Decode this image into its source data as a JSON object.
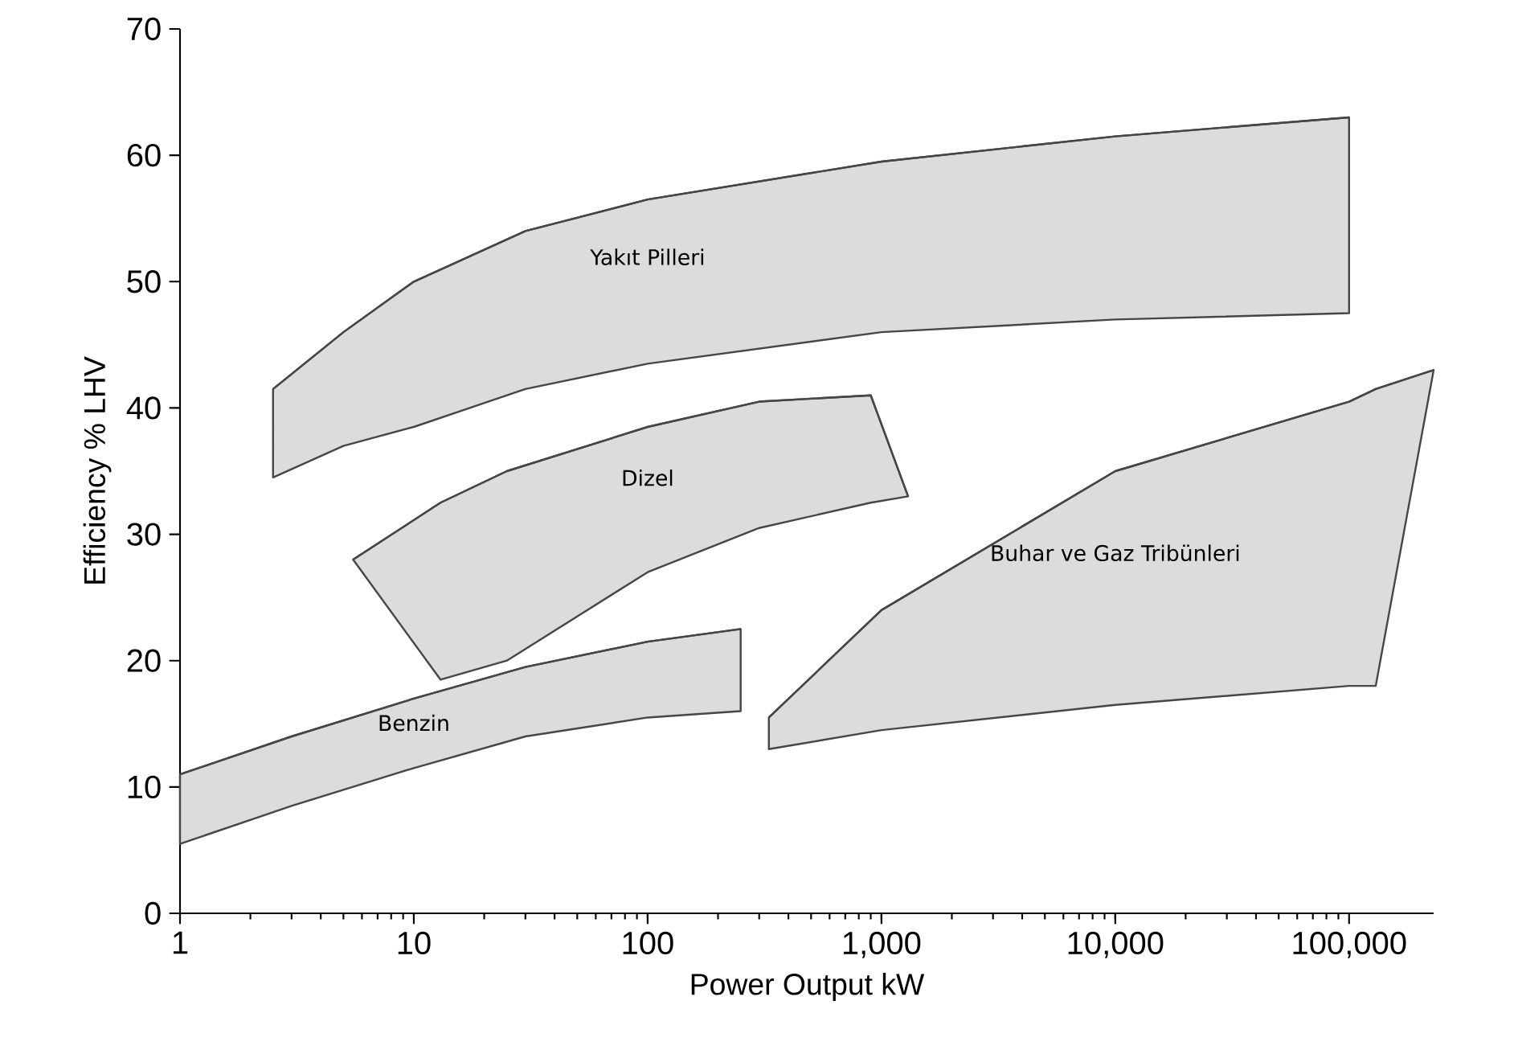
{
  "chart_data": {
    "type": "line",
    "xlabel": "Power Output kW",
    "ylabel": "Efficiency % LHV",
    "log": "x",
    "xlim": [
      1,
      230000
    ],
    "ylim": [
      0,
      70
    ],
    "xticks": [
      1,
      10,
      100,
      {
        "value": 1000,
        "label": "1,000"
      },
      {
        "value": 10000,
        "label": "10,000"
      },
      {
        "value": 100000,
        "label": "100,000"
      }
    ],
    "yticks": [
      0,
      10,
      20,
      30,
      40,
      50,
      60,
      70
    ],
    "grid": false,
    "legend": false,
    "series": [
      {
        "name": "Yakıt Pilleri",
        "color": "#464646",
        "x": [
          2.5,
          5,
          10,
          30,
          100,
          1000,
          10000,
          100000
        ],
        "values": [
          41.5,
          46,
          50,
          54,
          56.5,
          59.5,
          61.5,
          63
        ],
        "upper": [
          41.5,
          46,
          50,
          54,
          56.5,
          59.5,
          61.5,
          63
        ],
        "lower": [
          34.5,
          37,
          38.5,
          41.5,
          43.5,
          46,
          47,
          47.5
        ]
      },
      {
        "name": "Dizel",
        "color": "#464646",
        "x": [
          5.5,
          13,
          25,
          100,
          300,
          900,
          1300
        ],
        "values": [
          28,
          32.5,
          35,
          38.5,
          40.5,
          41,
          33
        ],
        "upper": [
          28,
          32.5,
          35,
          38.5,
          40.5,
          41,
          33
        ],
        "lower": [
          28,
          18.5,
          20,
          27,
          30.5,
          32.5,
          33
        ]
      },
      {
        "name": "Benzin",
        "color": "#464646",
        "x": [
          1,
          3,
          10,
          30,
          100,
          250
        ],
        "values": [
          11,
          14,
          17,
          19.5,
          21.5,
          22.5
        ],
        "upper": [
          11,
          14,
          17,
          19.5,
          21.5,
          22.5
        ],
        "lower": [
          5.5,
          8.5,
          11.5,
          14,
          15.5,
          16
        ]
      },
      {
        "name": "Buhar ve Gaz Tribünleri",
        "color": "#464646",
        "x": [
          330,
          1000,
          10000,
          100000,
          130000,
          230000
        ],
        "values": [
          15.5,
          24,
          35,
          40.5,
          41.5,
          43
        ],
        "upper": [
          15.5,
          24,
          35,
          40.5,
          41.5,
          43
        ],
        "lower": [
          13,
          14.5,
          16.5,
          18,
          18,
          43
        ]
      }
    ]
  }
}
